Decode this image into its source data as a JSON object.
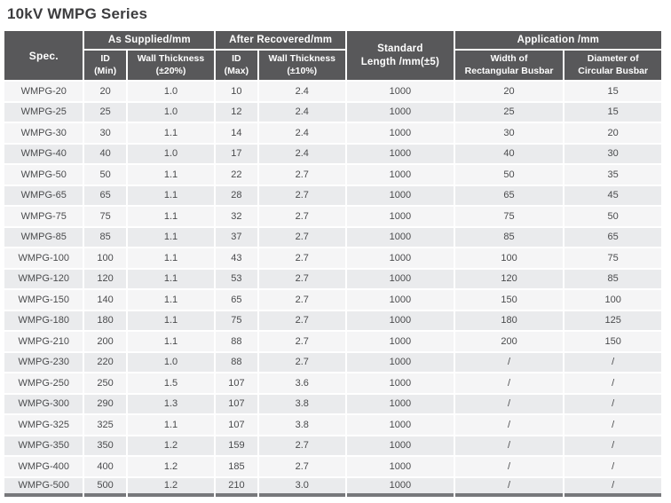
{
  "title": "10kV WMPG Series",
  "colors": {
    "header_bg": "#58585a",
    "header_text": "#ffffff",
    "row_base": "#f5f5f6",
    "row_alt": "#eaebed",
    "cell_text": "#4a4b4d",
    "title_text": "#3c3c3e",
    "bottom_bar": "#77787b"
  },
  "table": {
    "group_headers": {
      "spec": "Spec.",
      "as_supplied": "As Supplied/mm",
      "after_recovered": "After Recovered/mm",
      "standard_length": "Standard\nLength /mm(±5)",
      "application": "Application /mm"
    },
    "sub_headers": {
      "id_min": "ID\n(Min)",
      "wall_thickness_20": "Wall Thickness\n(±20%)",
      "id_max": "ID\n(Max)",
      "wall_thickness_10": "Wall Thickness\n(±10%)",
      "width_rectangular": "Width of\nRectangular Busbar",
      "diameter_circular": "Diameter of\nCircular Busbar"
    },
    "columns": [
      "spec",
      "id-min",
      "wall-thickness-20",
      "id-max",
      "wall-thickness-10",
      "standard-length",
      "width-rectangular-busbar",
      "diameter-circular-busbar"
    ],
    "rows": [
      [
        "WMPG-20",
        "20",
        "1.0",
        "10",
        "2.4",
        "1000",
        "20",
        "15"
      ],
      [
        "WMPG-25",
        "25",
        "1.0",
        "12",
        "2.4",
        "1000",
        "25",
        "15"
      ],
      [
        "WMPG-30",
        "30",
        "1.1",
        "14",
        "2.4",
        "1000",
        "30",
        "20"
      ],
      [
        "WMPG-40",
        "40",
        "1.0",
        "17",
        "2.4",
        "1000",
        "40",
        "30"
      ],
      [
        "WMPG-50",
        "50",
        "1.1",
        "22",
        "2.7",
        "1000",
        "50",
        "35"
      ],
      [
        "WMPG-65",
        "65",
        "1.1",
        "28",
        "2.7",
        "1000",
        "65",
        "45"
      ],
      [
        "WMPG-75",
        "75",
        "1.1",
        "32",
        "2.7",
        "1000",
        "75",
        "50"
      ],
      [
        "WMPG-85",
        "85",
        "1.1",
        "37",
        "2.7",
        "1000",
        "85",
        "65"
      ],
      [
        "WMPG-100",
        "100",
        "1.1",
        "43",
        "2.7",
        "1000",
        "100",
        "75"
      ],
      [
        "WMPG-120",
        "120",
        "1.1",
        "53",
        "2.7",
        "1000",
        "120",
        "85"
      ],
      [
        "WMPG-150",
        "140",
        "1.1",
        "65",
        "2.7",
        "1000",
        "150",
        "100"
      ],
      [
        "WMPG-180",
        "180",
        "1.1",
        "75",
        "2.7",
        "1000",
        "180",
        "125"
      ],
      [
        "WMPG-210",
        "200",
        "1.1",
        "88",
        "2.7",
        "1000",
        "200",
        "150"
      ],
      [
        "WMPG-230",
        "220",
        "1.0",
        "88",
        "2.7",
        "1000",
        "/",
        "/"
      ],
      [
        "WMPG-250",
        "250",
        "1.5",
        "107",
        "3.6",
        "1000",
        "/",
        "/"
      ],
      [
        "WMPG-300",
        "290",
        "1.3",
        "107",
        "3.8",
        "1000",
        "/",
        "/"
      ],
      [
        "WMPG-325",
        "325",
        "1.1",
        "107",
        "3.8",
        "1000",
        "/",
        "/"
      ],
      [
        "WMPG-350",
        "350",
        "1.2",
        "159",
        "2.7",
        "1000",
        "/",
        "/"
      ],
      [
        "WMPG-400",
        "400",
        "1.2",
        "185",
        "2.7",
        "1000",
        "/",
        "/"
      ],
      [
        "WMPG-500",
        "500",
        "1.2",
        "210",
        "3.0",
        "1000",
        "/",
        "/"
      ]
    ]
  }
}
